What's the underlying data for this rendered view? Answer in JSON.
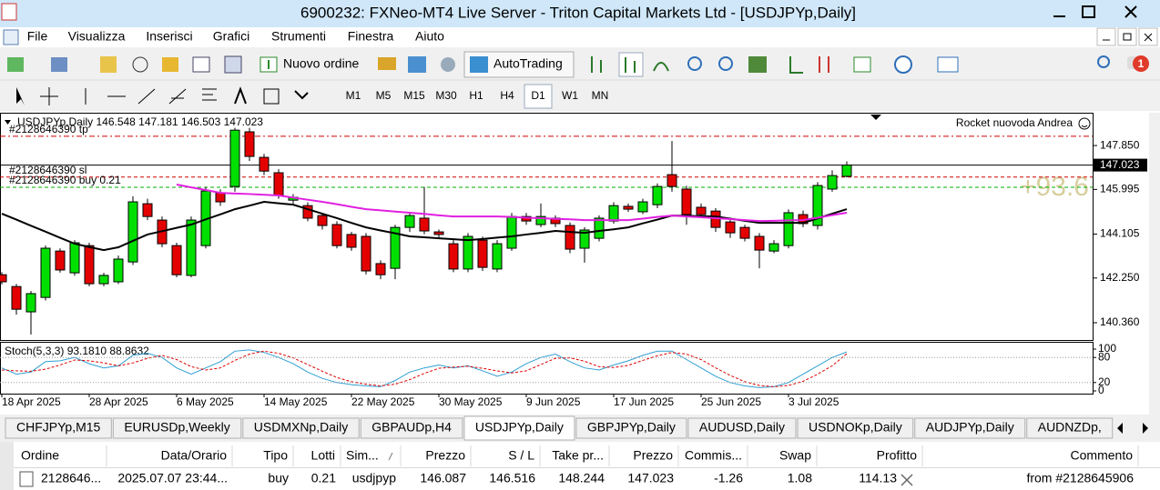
{
  "window": {
    "title": "6900232: FXNeo-MT4 Live Server - Triton Capital Markets Ltd - [USDJPYp,Daily]"
  },
  "menu": [
    "File",
    "Visualizza",
    "Inserisci",
    "Grafici",
    "Strumenti",
    "Finestra",
    "Aiuto"
  ],
  "toolbar": {
    "new_order": "Nuovo ordine",
    "autotrading": "AutoTrading",
    "timeframes": [
      "M1",
      "M5",
      "M15",
      "M30",
      "H1",
      "H4",
      "D1",
      "W1",
      "MN"
    ],
    "active_timeframe": "D1",
    "notifications": "1"
  },
  "chart_data": {
    "type": "candlestick",
    "header": "USDJPYp,Daily  146.548 147.181 146.503 147.023",
    "ea_label": "Rocket nuovoda Andrea",
    "profit_label": "+93.6",
    "categories": [
      "18 Apr 2025",
      null,
      null,
      null,
      null,
      null,
      "28 Apr 2025",
      null,
      null,
      null,
      null,
      null,
      "6 May 2025",
      null,
      null,
      null,
      null,
      null,
      "14 May 2025",
      null,
      null,
      null,
      null,
      null,
      "22 May 2025",
      null,
      null,
      null,
      null,
      null,
      "30 May 2025",
      null,
      null,
      null,
      null,
      null,
      "9 Jun 2025",
      null,
      null,
      null,
      null,
      null,
      "17 Jun 2025",
      null,
      null,
      null,
      null,
      null,
      "25 Jun 2025",
      null,
      null,
      null,
      null,
      null,
      "3 Jul 2025",
      null,
      null,
      null,
      null
    ],
    "ohlc": [
      [
        142.39,
        142.5,
        141.98,
        142.09
      ],
      [
        141.89,
        142.0,
        140.7,
        140.93
      ],
      [
        140.82,
        141.7,
        139.86,
        141.59
      ],
      [
        141.43,
        143.62,
        141.3,
        143.51
      ],
      [
        143.39,
        143.5,
        142.48,
        142.59
      ],
      [
        142.47,
        143.85,
        142.35,
        143.74
      ],
      [
        143.62,
        143.74,
        141.9,
        142.01
      ],
      [
        142.01,
        142.47,
        141.9,
        142.36
      ],
      [
        142.09,
        143.2,
        142.0,
        143.05
      ],
      [
        142.93,
        145.7,
        142.8,
        145.47
      ],
      [
        145.39,
        145.6,
        144.7,
        144.85
      ],
      [
        144.7,
        144.85,
        143.55,
        143.7
      ],
      [
        143.62,
        143.74,
        142.28,
        142.39
      ],
      [
        142.36,
        144.85,
        142.28,
        144.7
      ],
      [
        143.62,
        146.1,
        143.5,
        145.93
      ],
      [
        145.85,
        146.0,
        145.3,
        145.47
      ],
      [
        146.12,
        148.6,
        145.9,
        148.5
      ],
      [
        148.43,
        148.6,
        147.2,
        147.39
      ],
      [
        147.35,
        147.5,
        146.6,
        146.77
      ],
      [
        146.7,
        146.85,
        145.6,
        145.74
      ],
      [
        145.54,
        145.8,
        145.4,
        145.66
      ],
      [
        145.31,
        145.45,
        144.65,
        144.78
      ],
      [
        144.89,
        145.0,
        144.3,
        144.47
      ],
      [
        144.51,
        144.65,
        143.5,
        143.62
      ],
      [
        144.09,
        144.2,
        143.4,
        143.55
      ],
      [
        144.01,
        144.15,
        142.4,
        142.55
      ],
      [
        142.86,
        143.0,
        142.2,
        142.39
      ],
      [
        142.66,
        144.5,
        142.2,
        144.39
      ],
      [
        144.39,
        145.0,
        144.2,
        144.89
      ],
      [
        144.78,
        146.1,
        144.1,
        144.24
      ],
      [
        144.2,
        144.3,
        143.95,
        144.09
      ],
      [
        143.7,
        143.85,
        142.5,
        142.63
      ],
      [
        142.63,
        144.15,
        142.5,
        144.01
      ],
      [
        143.85,
        144.0,
        142.55,
        142.7
      ],
      [
        142.63,
        143.85,
        142.5,
        143.7
      ],
      [
        143.51,
        145.0,
        143.4,
        144.85
      ],
      [
        144.85,
        145.0,
        144.5,
        144.66
      ],
      [
        144.51,
        145.4,
        144.4,
        144.85
      ],
      [
        144.78,
        144.9,
        144.4,
        144.55
      ],
      [
        144.47,
        144.6,
        143.3,
        143.47
      ],
      [
        143.51,
        144.4,
        142.9,
        144.28
      ],
      [
        143.93,
        144.9,
        143.8,
        144.78
      ],
      [
        144.66,
        145.45,
        144.55,
        145.31
      ],
      [
        145.28,
        145.4,
        145.05,
        145.16
      ],
      [
        145.05,
        145.6,
        144.95,
        145.47
      ],
      [
        145.35,
        146.25,
        145.2,
        146.12
      ],
      [
        146.62,
        148.04,
        145.9,
        146.12
      ],
      [
        146.01,
        146.15,
        144.5,
        144.93
      ],
      [
        145.24,
        145.4,
        144.8,
        144.93
      ],
      [
        145.08,
        145.2,
        144.2,
        144.39
      ],
      [
        144.62,
        144.75,
        143.95,
        144.16
      ],
      [
        144.39,
        144.5,
        143.8,
        143.93
      ],
      [
        144.01,
        144.15,
        142.66,
        143.43
      ],
      [
        143.39,
        143.85,
        143.3,
        143.7
      ],
      [
        143.62,
        145.15,
        143.5,
        145.01
      ],
      [
        144.93,
        145.1,
        144.4,
        144.55
      ],
      [
        144.47,
        146.3,
        144.3,
        146.16
      ],
      [
        146.01,
        146.8,
        145.9,
        146.58
      ],
      [
        146.548,
        147.181,
        146.503,
        147.023
      ]
    ],
    "up_color": "#00e000",
    "down_color": "#e40000",
    "lines": [
      {
        "color": "#000000",
        "values": [
          144.97,
          144.72,
          144.46,
          144.21,
          143.95,
          143.7,
          143.56,
          143.43,
          143.55,
          143.82,
          144.09,
          144.23,
          144.37,
          144.51,
          144.73,
          144.94,
          145.16,
          145.31,
          145.47,
          145.41,
          145.35,
          145.16,
          144.97,
          144.78,
          144.58,
          144.39,
          144.26,
          144.14,
          144.01,
          143.97,
          143.93,
          143.89,
          143.85,
          143.9,
          143.96,
          144.01,
          144.09,
          144.16,
          144.24,
          144.2,
          144.16,
          144.24,
          144.31,
          144.39,
          144.56,
          144.72,
          144.89,
          144.88,
          144.86,
          144.85,
          144.76,
          144.67,
          144.58,
          144.58,
          144.58,
          144.58,
          144.77,
          144.97,
          145.16
        ]
      },
      {
        "color": "#e020e0",
        "values": [
          null,
          null,
          null,
          null,
          null,
          null,
          null,
          null,
          null,
          null,
          null,
          null,
          146.2,
          146.08,
          145.97,
          145.85,
          145.82,
          145.8,
          145.77,
          145.74,
          145.65,
          145.56,
          145.47,
          145.37,
          145.26,
          145.16,
          145.11,
          145.06,
          145.01,
          144.96,
          144.9,
          144.85,
          144.85,
          144.85,
          144.85,
          144.83,
          144.8,
          144.78,
          144.75,
          144.73,
          144.7,
          144.7,
          144.7,
          144.7,
          144.76,
          144.83,
          144.89,
          144.85,
          144.82,
          144.78,
          144.74,
          144.7,
          144.66,
          144.67,
          144.69,
          144.7,
          144.8,
          144.91,
          145.01
        ]
      }
    ],
    "ylim": [
      139.63,
      149.16
    ],
    "yticks": [
      {
        "value": 147.85,
        "label": "147.850"
      },
      {
        "value": 145.995,
        "label": "145.995"
      },
      {
        "value": 144.105,
        "label": "144.105"
      },
      {
        "value": 142.25,
        "label": "142.250"
      },
      {
        "value": 140.36,
        "label": "140.360"
      }
    ],
    "current_price": 147.023,
    "levels": [
      {
        "label": "#2128646390 tp",
        "value": 148.244,
        "color": "#d00000"
      },
      {
        "label": "#2128646390 sl",
        "value": 146.516,
        "color": "#d00000"
      },
      {
        "label": "#2128646390 buy 0.21",
        "value": 146.087,
        "color": "#00b000"
      }
    ],
    "stoch": {
      "label": "Stoch(5,3,3) 93.1810 88.8632",
      "ylim": [
        0,
        100
      ],
      "yticks": [
        100,
        80,
        20,
        0
      ],
      "levels": [
        80,
        20
      ],
      "main": {
        "color": "#2f9fd3",
        "values": [
          55,
          40,
          45,
          70,
          72,
          80,
          65,
          55,
          60,
          85,
          90,
          80,
          55,
          40,
          55,
          70,
          95,
          98,
          92,
          80,
          65,
          45,
          30,
          20,
          15,
          12,
          10,
          25,
          45,
          55,
          62,
          55,
          60,
          48,
          35,
          45,
          65,
          80,
          88,
          70,
          55,
          50,
          62,
          72,
          85,
          95,
          95,
          75,
          55,
          35,
          20,
          12,
          8,
          10,
          20,
          40,
          60,
          80,
          93.181
        ]
      },
      "signal": {
        "color": "#e00000",
        "values": [
          50,
          48,
          47,
          52,
          62,
          74,
          72,
          67,
          60,
          67,
          78,
          85,
          75,
          58,
          50,
          55,
          73,
          88,
          95,
          90,
          79,
          63,
          47,
          32,
          22,
          16,
          12,
          16,
          27,
          42,
          54,
          57,
          59,
          54,
          48,
          43,
          48,
          63,
          78,
          79,
          71,
          58,
          56,
          61,
          73,
          84,
          92,
          88,
          75,
          55,
          37,
          22,
          13,
          10,
          13,
          23,
          40,
          60,
          88.8632
        ]
      }
    }
  },
  "tabs": {
    "items": [
      "CHFJPYp,M15",
      "EURUSDp,Weekly",
      "USDMXNp,Daily",
      "GBPAUDp,H4",
      "USDJPYp,Daily",
      "GBPJPYp,Daily",
      "AUDUSD,Daily",
      "USDNOKp,Daily",
      "AUDJPYp,Daily",
      "AUDNZDp,"
    ],
    "active": 4
  },
  "orders": {
    "columns": [
      "Ordine",
      "Data/Orario",
      "Tipo",
      "Lotti",
      "Sim...",
      "Prezzo",
      "S / L",
      "Take pr...",
      "Prezzo",
      "Commis...",
      "Swap",
      "Profitto",
      "Commento"
    ],
    "rows": [
      [
        "2128646...",
        "2025.07.07 23:44...",
        "buy",
        "0.21",
        "usdjpyp",
        "146.087",
        "146.516",
        "148.244",
        "147.023",
        "-1.26",
        "1.08",
        "114.13",
        "from #2128645906"
      ]
    ]
  }
}
